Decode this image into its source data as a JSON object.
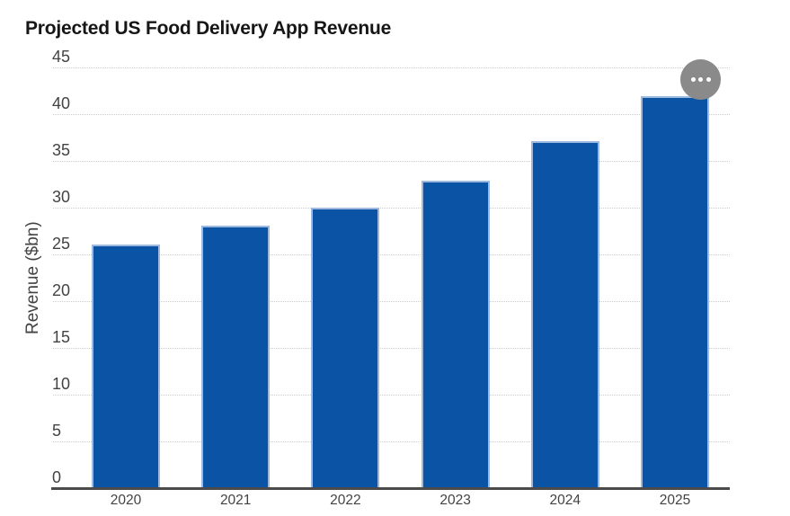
{
  "title": "Projected US Food Delivery App Revenue",
  "menu_button": {
    "icon": "ellipsis-icon"
  },
  "colors": {
    "title": "#161616",
    "bar": "#0b54a5",
    "bar_border": "#9db9dd",
    "axis": "#4b4b4b",
    "gridline": "#cccccc",
    "tick_label": "#434343",
    "menu_background": "#8a8a8a",
    "menu_dots": "#ffffff",
    "background": "#ffffff"
  },
  "chart_data": {
    "type": "bar",
    "title": "Projected US Food Delivery App Revenue",
    "categories": [
      "2020",
      "2021",
      "2022",
      "2023",
      "2024",
      "2025"
    ],
    "values": [
      26.1,
      28.1,
      30.0,
      32.9,
      37.1,
      41.9
    ],
    "xlabel": "",
    "ylabel": "Revenue ($bn)",
    "ylim": [
      0,
      45
    ],
    "yticks": [
      0,
      5,
      10,
      15,
      20,
      25,
      30,
      35,
      40,
      45
    ],
    "grid": "horizontal, dotted light gray, y-tick labels sit above lines",
    "legend": "none",
    "bar_color": "#0b54a5"
  }
}
